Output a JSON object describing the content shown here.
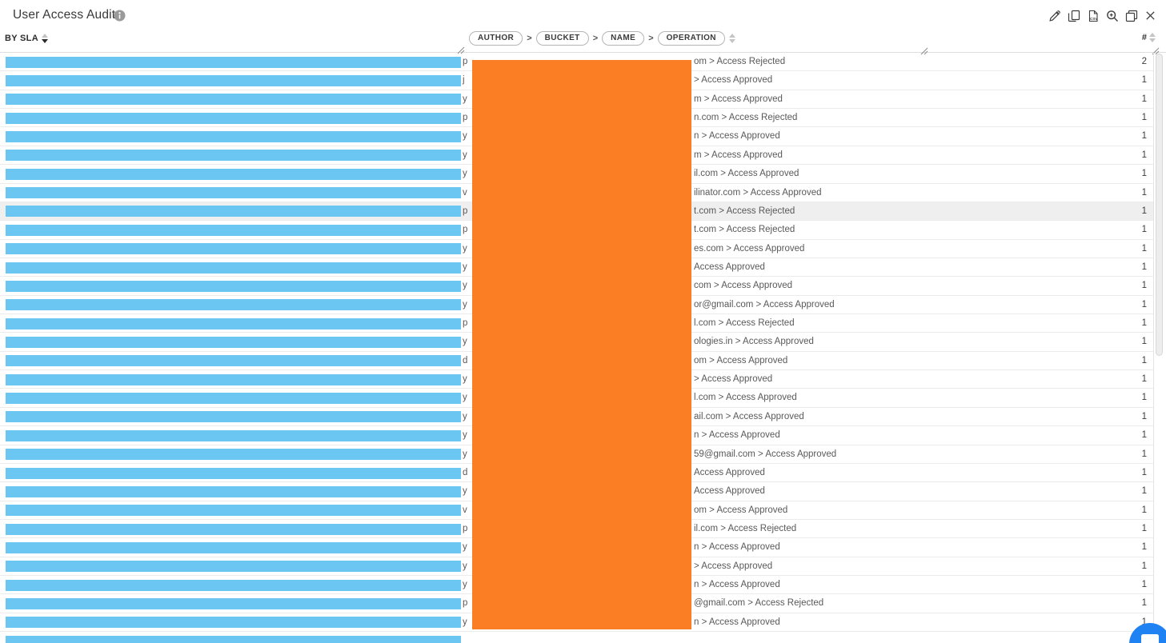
{
  "window": {
    "title": "User Access Audit",
    "toolbar": [
      {
        "name": "edit",
        "icon": "pencil-icon"
      },
      {
        "name": "copy",
        "icon": "copy-icon"
      },
      {
        "name": "export-csv",
        "icon": "csv-file-icon"
      },
      {
        "name": "zoom-in",
        "icon": "magnifier-plus-icon"
      },
      {
        "name": "popout",
        "icon": "window-restore-icon"
      },
      {
        "name": "close",
        "icon": "close-icon"
      }
    ]
  },
  "table": {
    "sla_column": {
      "label": "BY SLA",
      "sort": "desc"
    },
    "path_column": {
      "segments": [
        "AUTHOR",
        "BUCKET",
        "NAME",
        "OPERATION"
      ],
      "separator": ">"
    },
    "count_column": {
      "label": "#"
    },
    "rows": [
      {
        "prefix": "p",
        "path_visible": "om > Access Rejected",
        "count": "2",
        "highlighted": false
      },
      {
        "prefix": "j",
        "path_visible": "> Access Approved",
        "count": "1",
        "highlighted": false
      },
      {
        "prefix": "y",
        "path_visible": "m > Access Approved",
        "count": "1",
        "highlighted": false
      },
      {
        "prefix": "p",
        "path_visible": "n.com > Access Rejected",
        "count": "1",
        "highlighted": false
      },
      {
        "prefix": "y",
        "path_visible": "n > Access Approved",
        "count": "1",
        "highlighted": false
      },
      {
        "prefix": "y",
        "path_visible": "m > Access Approved",
        "count": "1",
        "highlighted": false
      },
      {
        "prefix": "y",
        "path_visible": "il.com > Access Approved",
        "count": "1",
        "highlighted": false
      },
      {
        "prefix": "v",
        "path_visible": "ilinator.com > Access Approved",
        "count": "1",
        "highlighted": false
      },
      {
        "prefix": "p",
        "path_visible": "t.com > Access Rejected",
        "count": "1",
        "highlighted": true
      },
      {
        "prefix": "p",
        "path_visible": "t.com > Access Rejected",
        "count": "1",
        "highlighted": false
      },
      {
        "prefix": "y",
        "path_visible": "es.com > Access Approved",
        "count": "1",
        "highlighted": false
      },
      {
        "prefix": "y",
        "path_visible": "Access Approved",
        "count": "1",
        "highlighted": false
      },
      {
        "prefix": "y",
        "path_visible": "com > Access Approved",
        "count": "1",
        "highlighted": false
      },
      {
        "prefix": "y",
        "path_visible": "or@gmail.com > Access Approved",
        "count": "1",
        "highlighted": false
      },
      {
        "prefix": "p",
        "path_visible": "l.com > Access Rejected",
        "count": "1",
        "highlighted": false
      },
      {
        "prefix": "y",
        "path_visible": "ologies.in > Access Approved",
        "count": "1",
        "highlighted": false
      },
      {
        "prefix": "d",
        "path_visible": "om > Access Approved",
        "count": "1",
        "highlighted": false
      },
      {
        "prefix": "y",
        "path_visible": "> Access Approved",
        "count": "1",
        "highlighted": false
      },
      {
        "prefix": "y",
        "path_visible": "l.com > Access Approved",
        "count": "1",
        "highlighted": false
      },
      {
        "prefix": "y",
        "path_visible": "ail.com > Access Approved",
        "count": "1",
        "highlighted": false
      },
      {
        "prefix": "y",
        "path_visible": "n > Access Approved",
        "count": "1",
        "highlighted": false
      },
      {
        "prefix": "y",
        "path_visible": "59@gmail.com > Access Approved",
        "count": "1",
        "highlighted": false
      },
      {
        "prefix": "d",
        "path_visible": "Access Approved",
        "count": "1",
        "highlighted": false
      },
      {
        "prefix": "y",
        "path_visible": "Access Approved",
        "count": "1",
        "highlighted": false
      },
      {
        "prefix": "v",
        "path_visible": "om > Access Approved",
        "count": "1",
        "highlighted": false
      },
      {
        "prefix": "p",
        "path_visible": "il.com > Access Rejected",
        "count": "1",
        "highlighted": false
      },
      {
        "prefix": "y",
        "path_visible": "n > Access Approved",
        "count": "1",
        "highlighted": false
      },
      {
        "prefix": "y",
        "path_visible": "> Access Approved",
        "count": "1",
        "highlighted": false
      },
      {
        "prefix": "y",
        "path_visible": "n > Access Approved",
        "count": "1",
        "highlighted": false
      },
      {
        "prefix": "p",
        "path_visible": "@gmail.com > Access Rejected",
        "count": "1",
        "highlighted": false
      },
      {
        "prefix": "y",
        "path_visible": "n > Access Approved",
        "count": "1",
        "highlighted": false
      },
      {
        "prefix": "",
        "path_visible": "",
        "count": "",
        "highlighted": false
      }
    ]
  },
  "colors": {
    "bar": "#6BC7F1",
    "redaction": "#FB7E24",
    "row_highlight": "#EFEFEF",
    "chat": "#1E82F2"
  },
  "chat": {
    "icon": "chat-bubble-icon"
  }
}
